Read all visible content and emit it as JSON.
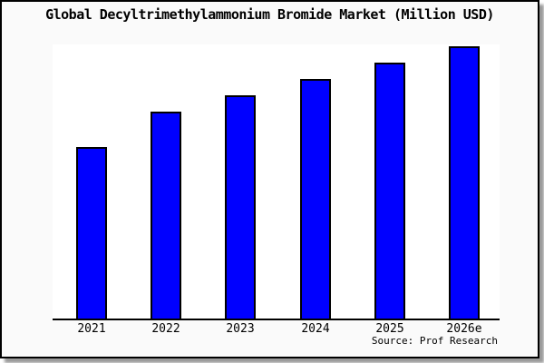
{
  "frame": {
    "page_background": "#ffffff",
    "canvas_background": "#fafafa",
    "plot_background": "#ffffff",
    "border_color": "#000000",
    "shadow_color": "#9a9a9a"
  },
  "chart_data": {
    "type": "bar",
    "title": "Global Decyltrimethylammonium Bromide Market (Million USD)",
    "categories": [
      "2021",
      "2022",
      "2023",
      "2024",
      "2025",
      "2026e"
    ],
    "values": [
      63,
      76,
      82,
      88,
      94,
      100
    ],
    "values_note": "no numeric y-axis is shown in the image; values are measured bar heights as percent of the tallest (2026e) bar",
    "xlabel": "",
    "ylabel": "",
    "ylim": [
      0,
      100
    ],
    "grid": false,
    "legend": null,
    "bar_color": "#0000ff",
    "bar_border_color": "#000000",
    "source": "Source: Prof Research"
  }
}
